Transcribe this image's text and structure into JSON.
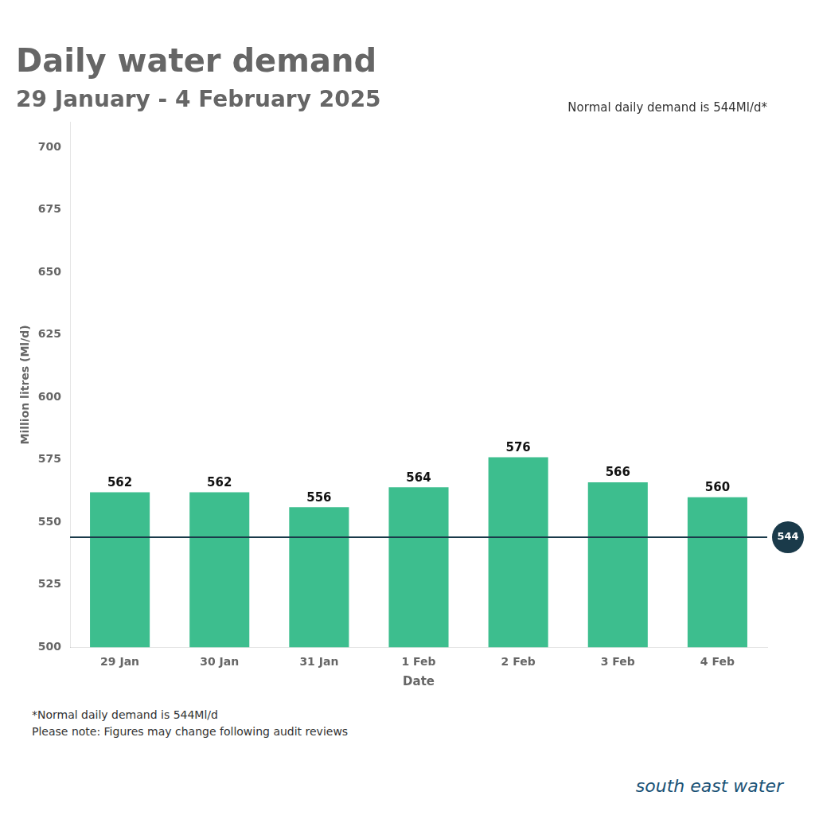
{
  "chart_data": {
    "type": "bar",
    "title": "Daily water demand",
    "subtitle": "29 January - 4 February 2025",
    "xlabel": "Date",
    "ylabel": "Million litres (Ml/d)",
    "categories": [
      "29 Jan",
      "30 Jan",
      "31 Jan",
      "1 Feb",
      "2 Feb",
      "3 Feb",
      "4 Feb"
    ],
    "values": [
      562,
      562,
      556,
      564,
      576,
      566,
      560
    ],
    "color": "#3dbe8e",
    "ylim": [
      500,
      710
    ],
    "yticks": [
      500,
      525,
      550,
      575,
      600,
      625,
      650,
      675,
      700
    ],
    "grid": false,
    "data_labels": true,
    "reference_line": {
      "value": 544,
      "color": "#1a3a4a",
      "label": "Normal daily demand is 544Ml/d*"
    },
    "footnotes": [
      "*Normal daily demand is 544Ml/d",
      "Please note: Figures may change following audit reviews"
    ],
    "annotations": [
      "south east water"
    ]
  }
}
